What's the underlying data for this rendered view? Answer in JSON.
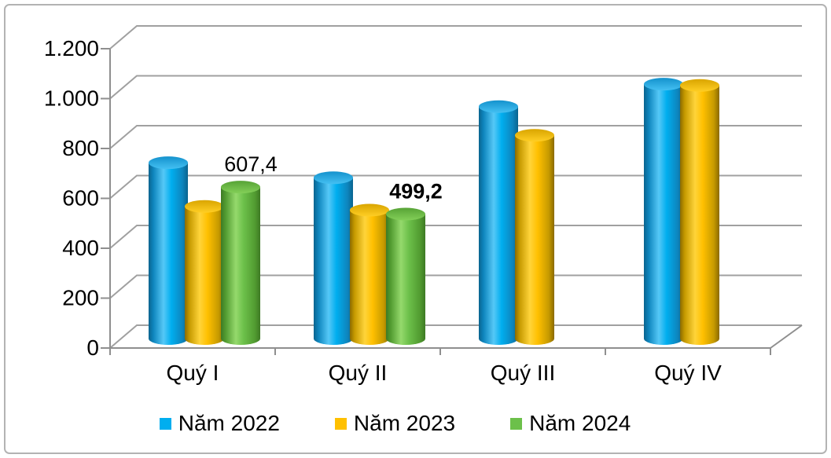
{
  "chart_data": {
    "type": "bar",
    "variant": "3d-cylinder",
    "title": "",
    "xlabel": "",
    "ylabel": "",
    "grid": true,
    "legend_position": "bottom",
    "categories": [
      "Quý I",
      "Quý II",
      "Quý III",
      "Quý IV"
    ],
    "series": [
      {
        "name": "Năm 2022",
        "color": "#00aeef",
        "gradient": {
          "edge": "#0a648f",
          "dark": "#0e85bd",
          "mid": "#00aeef",
          "light": "#55c8f7",
          "top_dark": "#1492cd",
          "top_light": "#44c0f2"
        },
        "values": [
          705,
          645,
          930,
          1020
        ]
      },
      {
        "name": "Năm 2023",
        "color": "#ffc000",
        "gradient": {
          "edge": "#8a6a00",
          "dark": "#c69a00",
          "mid": "#ffc000",
          "light": "#ffd43a",
          "top_dark": "#d9a500",
          "top_light": "#ffce24"
        },
        "values": [
          530,
          515,
          815,
          1015
        ]
      },
      {
        "name": "Năm 2024",
        "color": "#6cc04a",
        "gradient": {
          "edge": "#3e7a24",
          "dark": "#529c31",
          "mid": "#6cc04a",
          "light": "#95d96c",
          "top_dark": "#57a336",
          "top_light": "#83cf58"
        },
        "values": [
          607.4,
          499.2,
          null,
          null
        ]
      }
    ],
    "ylim": [
      0,
      1200
    ],
    "yticks": [
      {
        "value": 0,
        "label": "0"
      },
      {
        "value": 200,
        "label": "200"
      },
      {
        "value": 400,
        "label": "400"
      },
      {
        "value": 600,
        "label": "600"
      },
      {
        "value": 800,
        "label": "800"
      },
      {
        "value": 1000,
        "label": "1.000"
      },
      {
        "value": 1200,
        "label": "1.200"
      }
    ],
    "annotations": [
      {
        "category_index": 0,
        "series_index": 2,
        "text": "607,4",
        "bold": false
      },
      {
        "category_index": 1,
        "series_index": 2,
        "text": "499,2",
        "bold": true
      }
    ],
    "colors": {
      "gridline": "#a0a0a0",
      "axis": "#8f8f8f",
      "text": "#000000",
      "frame_border": "#b3b3b3"
    }
  }
}
